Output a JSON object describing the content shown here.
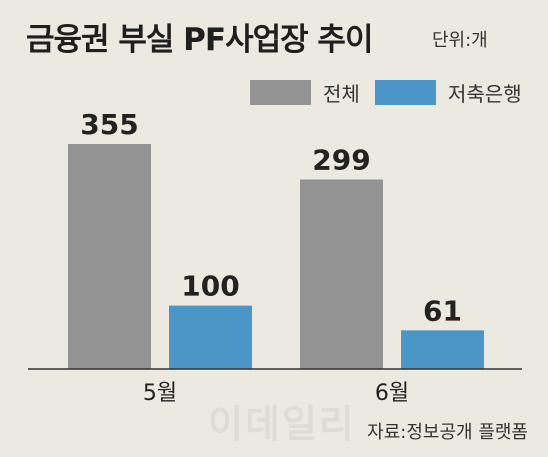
{
  "chart_data": {
    "type": "bar",
    "title": "금융권 부실 PF사업장 추이",
    "unit": "단위:개",
    "categories": [
      "5월",
      "6월"
    ],
    "series": [
      {
        "name": "전체",
        "values": [
          355,
          299
        ],
        "color": "#939393"
      },
      {
        "name": "저축은행",
        "values": [
          100,
          61
        ],
        "color": "#4b96c6"
      }
    ],
    "xlabel": "",
    "ylabel": "",
    "ylim": [
      0,
      355
    ],
    "grid": false,
    "legend": "top-right"
  },
  "source": "자료:정보공개 플랫폼",
  "watermark": "이데일리"
}
